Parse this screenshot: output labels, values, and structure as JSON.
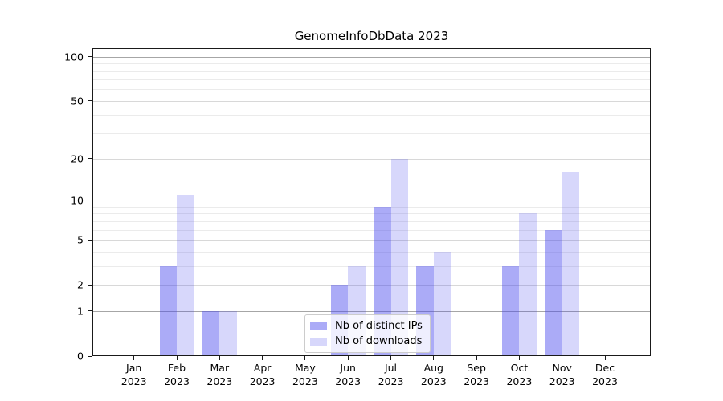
{
  "chart_data": {
    "type": "bar",
    "title": "GenomeInfoDbData 2023",
    "xlabel": "",
    "ylabel": "",
    "categories": [
      "Jan 2023",
      "Feb 2023",
      "Mar 2023",
      "Apr 2023",
      "May 2023",
      "Jun 2023",
      "Jul 2023",
      "Aug 2023",
      "Sep 2023",
      "Oct 2023",
      "Nov 2023",
      "Dec 2023"
    ],
    "series": [
      {
        "name": "Nb of distinct IPs",
        "color": "rgba(68,68,238,0.45)",
        "values": [
          0,
          3,
          1,
          0,
          0,
          2,
          9,
          3,
          0,
          3,
          6,
          0
        ]
      },
      {
        "name": "Nb of downloads",
        "color": "rgba(68,68,238,0.21)",
        "values": [
          0,
          11,
          1,
          0,
          0,
          3,
          20,
          4,
          0,
          8,
          16,
          0
        ]
      }
    ],
    "y_scale": "log1p",
    "y_ticks": [
      0,
      1,
      2,
      5,
      10,
      20,
      50,
      100
    ],
    "y_decade_ticks": [
      1,
      10,
      100
    ],
    "y_minor_ticks": [
      3,
      4,
      6,
      7,
      8,
      9,
      30,
      40,
      60,
      70,
      80,
      90
    ],
    "ylim": [
      0,
      115
    ],
    "grid": true,
    "legend_position": "inside-bottom-center",
    "colors": {
      "bar_dark_rendered": "#aaaaf6",
      "bar_light_rendered": "#d9d9f8",
      "grid_decade": "#a6a6a6",
      "grid_labeled": "#d8d8d8",
      "grid_minor": "#ebebeb",
      "spine": "#1a1a1a"
    }
  }
}
